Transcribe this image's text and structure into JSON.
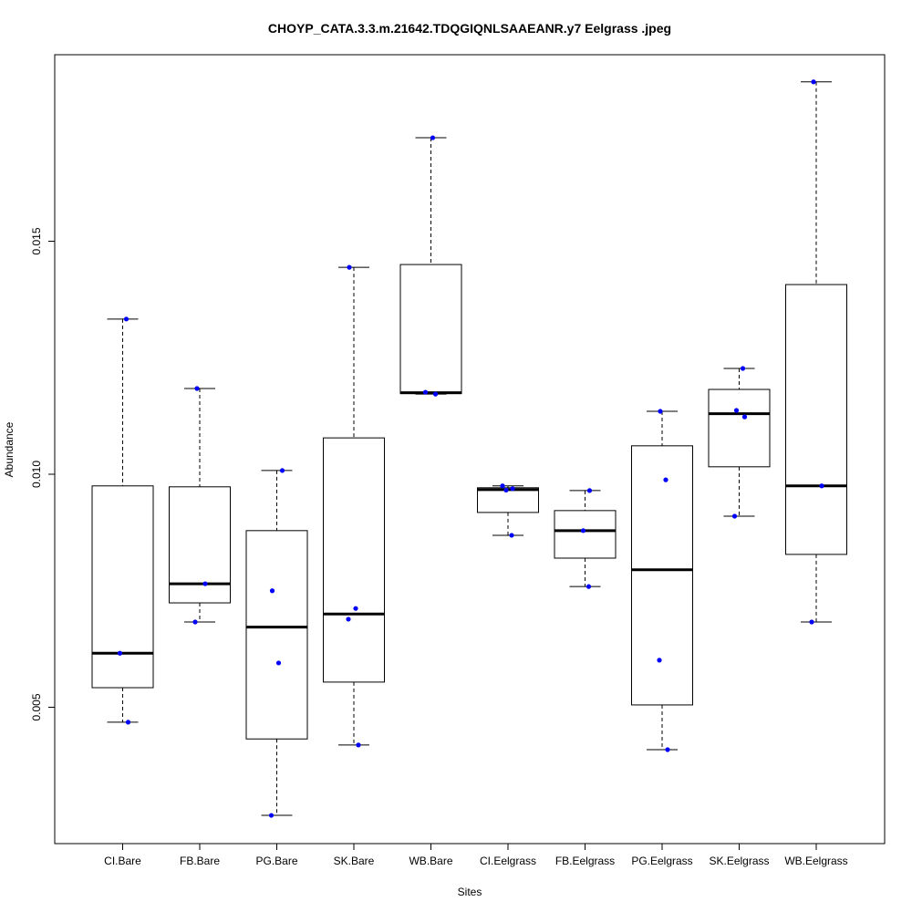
{
  "chart_data": {
    "type": "boxplot",
    "title": "CHOYP_CATA.3.3.m.21642.TDQGIQNLSAAEANR.y7 Eelgrass .jpeg",
    "xlabel": "Sites",
    "ylabel": "Abundance",
    "ylim": [
      0.0021,
      0.01895
    ],
    "yticks": [
      0.005,
      0.01,
      0.015
    ],
    "ytick_labels": [
      "0.005",
      "0.010",
      "0.015"
    ],
    "grid": false,
    "point_color": "#0000ff",
    "categories": [
      "CI.Bare",
      "FB.Bare",
      "PG.Bare",
      "SK.Bare",
      "WB.Bare",
      "CI.Eelgrass",
      "FB.Eelgrass",
      "PG.Eelgrass",
      "SK.Eelgrass",
      "WB.Eelgrass"
    ],
    "boxes": [
      {
        "min": 0.00468,
        "q1": 0.00542,
        "median": 0.00616,
        "q3": 0.00975,
        "max": 0.01333,
        "points": [
          0.01333,
          0.00616,
          0.00468
        ]
      },
      {
        "min": 0.00683,
        "q1": 0.00724,
        "median": 0.00765,
        "q3": 0.00973,
        "max": 0.01184,
        "points": [
          0.01184,
          0.00765,
          0.00683
        ]
      },
      {
        "min": 0.00268,
        "q1": 0.00432,
        "median": 0.00672,
        "q3": 0.00879,
        "max": 0.01008,
        "points": [
          0.01008,
          0.0075,
          0.00595,
          0.00268
        ]
      },
      {
        "min": 0.00419,
        "q1": 0.00554,
        "median": 0.007,
        "q3": 0.01078,
        "max": 0.01444,
        "points": [
          0.01444,
          0.00712,
          0.00689,
          0.00419
        ]
      },
      {
        "min": 0.01172,
        "q1": 0.01173,
        "median": 0.01175,
        "q3": 0.0145,
        "max": 0.01722,
        "points": [
          0.01722,
          0.01176,
          0.01172
        ]
      },
      {
        "min": 0.00869,
        "q1": 0.00918,
        "median": 0.00967,
        "q3": 0.00971,
        "max": 0.00975,
        "points": [
          0.00975,
          0.00969,
          0.00966,
          0.00869
        ]
      },
      {
        "min": 0.00759,
        "q1": 0.0082,
        "median": 0.00879,
        "q3": 0.00922,
        "max": 0.00965,
        "points": [
          0.00965,
          0.00879,
          0.00759
        ]
      },
      {
        "min": 0.00409,
        "q1": 0.00505,
        "median": 0.00795,
        "q3": 0.01061,
        "max": 0.01135,
        "points": [
          0.01135,
          0.00988,
          0.00601,
          0.00409
        ]
      },
      {
        "min": 0.0091,
        "q1": 0.01016,
        "median": 0.0113,
        "q3": 0.01182,
        "max": 0.01227,
        "points": [
          0.01227,
          0.01137,
          0.01123,
          0.0091
        ]
      },
      {
        "min": 0.00683,
        "q1": 0.00828,
        "median": 0.00975,
        "q3": 0.01407,
        "max": 0.01842,
        "points": [
          0.01842,
          0.00975,
          0.00683
        ]
      }
    ]
  }
}
